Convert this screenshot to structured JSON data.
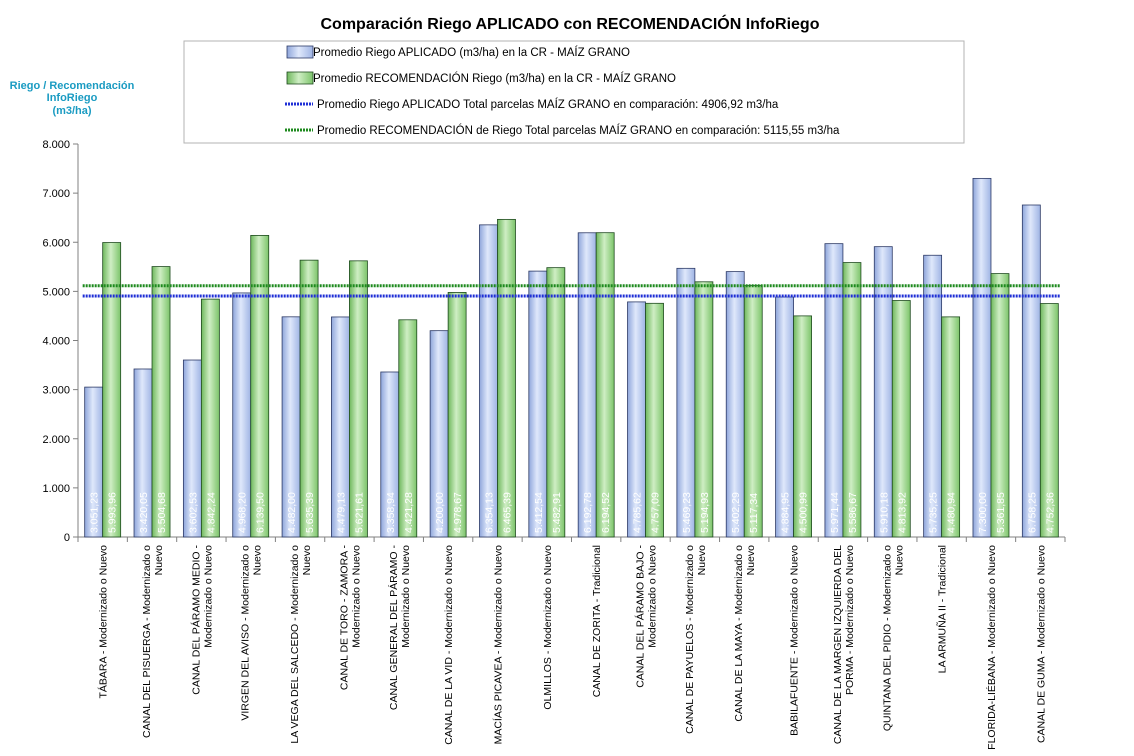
{
  "chart_data": {
    "type": "bar",
    "title": "Comparación Riego APLICADO con RECOMENDACIÓN InfoRiego",
    "ylabel": [
      "Riego / Recomendación",
      "InfoRiego",
      "(m3/ha)"
    ],
    "ylim": [
      0,
      8000
    ],
    "yticks": [
      0,
      1000,
      2000,
      3000,
      4000,
      5000,
      6000,
      7000,
      8000
    ],
    "ytick_labels": [
      "0",
      "1.000",
      "2.000",
      "3.000",
      "4.000",
      "5.000",
      "6.000",
      "7.000",
      "8.000"
    ],
    "categories": [
      [
        "TÁBARA - Modernizado o Nuevo"
      ],
      [
        "CANAL DEL PISUERGA - Modernizado o",
        "Nuevo"
      ],
      [
        "CANAL DEL PÁRAMO MEDIO -",
        "Modernizado o Nuevo"
      ],
      [
        "VIRGEN DEL AVISO - Modernizado o",
        "Nuevo"
      ],
      [
        "LA VEGA DEL SALCEDO - Modernizado o",
        "Nuevo"
      ],
      [
        "CANAL DE TORO - ZAMORA -",
        "Modernizado o Nuevo"
      ],
      [
        "CANAL GENERAL DEL PÁRAMO -",
        "Modernizado o Nuevo"
      ],
      [
        "CANAL DE LA VID - Modernizado o Nuevo"
      ],
      [
        "MACÍAS PICAVEA - Modernizado o Nuevo"
      ],
      [
        "OLMILLOS - Modernizado o Nuevo"
      ],
      [
        "CANAL DE ZORITA - Tradicional"
      ],
      [
        "CANAL DEL PÁRAMO BAJO -",
        "Modernizado o Nuevo"
      ],
      [
        "CANAL DE PAYUELOS - Modernizado o",
        "Nuevo"
      ],
      [
        "CANAL DE LA MAYA - Modernizado o",
        "Nuevo"
      ],
      [
        "BABILAFUENTE - Modernizado o Nuevo"
      ],
      [
        "CANAL DE LA MARGEN IZQUIERDA DEL",
        "PORMA - Modernizado o Nuevo"
      ],
      [
        "QUINTANA DEL PIDIO - Modernizado o",
        "Nuevo"
      ],
      [
        "LA ARMUÑA II - Tradicional"
      ],
      [
        "FLORIDA-LIÉBANA - Modernizado o Nuevo"
      ],
      [
        "CANAL DE GUMA - Modernizado o Nuevo"
      ]
    ],
    "series": [
      {
        "name": "Promedio Riego APLICADO (m3/ha) en la CR - MAÍZ GRANO",
        "color": "#a9bfe8",
        "values": [
          3051.23,
          3420.05,
          3602.53,
          4968.2,
          4482.0,
          4479.13,
          3358.94,
          4200.0,
          6354.13,
          5412.54,
          6192.78,
          4785.62,
          5469.23,
          5402.29,
          4884.95,
          5971.44,
          5910.18,
          5735.25,
          7300.0,
          6758.25
        ],
        "labels": [
          "3.051,23",
          "3.420,05",
          "3.602,53",
          "4.968,20",
          "4.482,00",
          "4.479,13",
          "3.358,94",
          "4.200,00",
          "6.354,13",
          "5.412,54",
          "6.192,78",
          "4.785,62",
          "5.469,23",
          "5.402,29",
          "4.884,95",
          "5.971,44",
          "5.910,18",
          "5.735,25",
          "7.300,00",
          "6.758,25"
        ]
      },
      {
        "name": "Promedio RECOMENDACIÓN Riego (m3/ha) en la CR - MAÍZ GRANO",
        "color": "#8fcf7e",
        "values": [
          5993.96,
          5504.68,
          4842.24,
          6139.5,
          5635.39,
          5621.61,
          4421.28,
          4978.67,
          6465.39,
          5482.91,
          6194.52,
          4757.09,
          5194.93,
          5117.34,
          4500.99,
          5586.67,
          4813.92,
          4480.94,
          5361.85,
          4752.36
        ],
        "labels": [
          "5.993,96",
          "5.504,68",
          "4.842,24",
          "6.139,50",
          "5.635,39",
          "5.621,61",
          "4.421,28",
          "4.978,67",
          "6.465,39",
          "5.482,91",
          "6.194,52",
          "4.757,09",
          "5.194,93",
          "5.117,34",
          "4.500,99",
          "5.586,67",
          "4.813,92",
          "4.480,94",
          "5.361,85",
          "4.752,36"
        ]
      }
    ],
    "reference_lines": [
      {
        "name": "Promedio Riego APLICADO Total parcelas MAÍZ GRANO en comparación: 4906,92 m3/ha",
        "value": 4906.92,
        "color": "#1f2fd6"
      },
      {
        "name": "Promedio RECOMENDACIÓN de Riego Total parcelas MAÍZ GRANO en comparación: 5115,55 m3/ha",
        "value": 5115.55,
        "color": "#1e8a1e"
      }
    ],
    "legend": "top"
  }
}
